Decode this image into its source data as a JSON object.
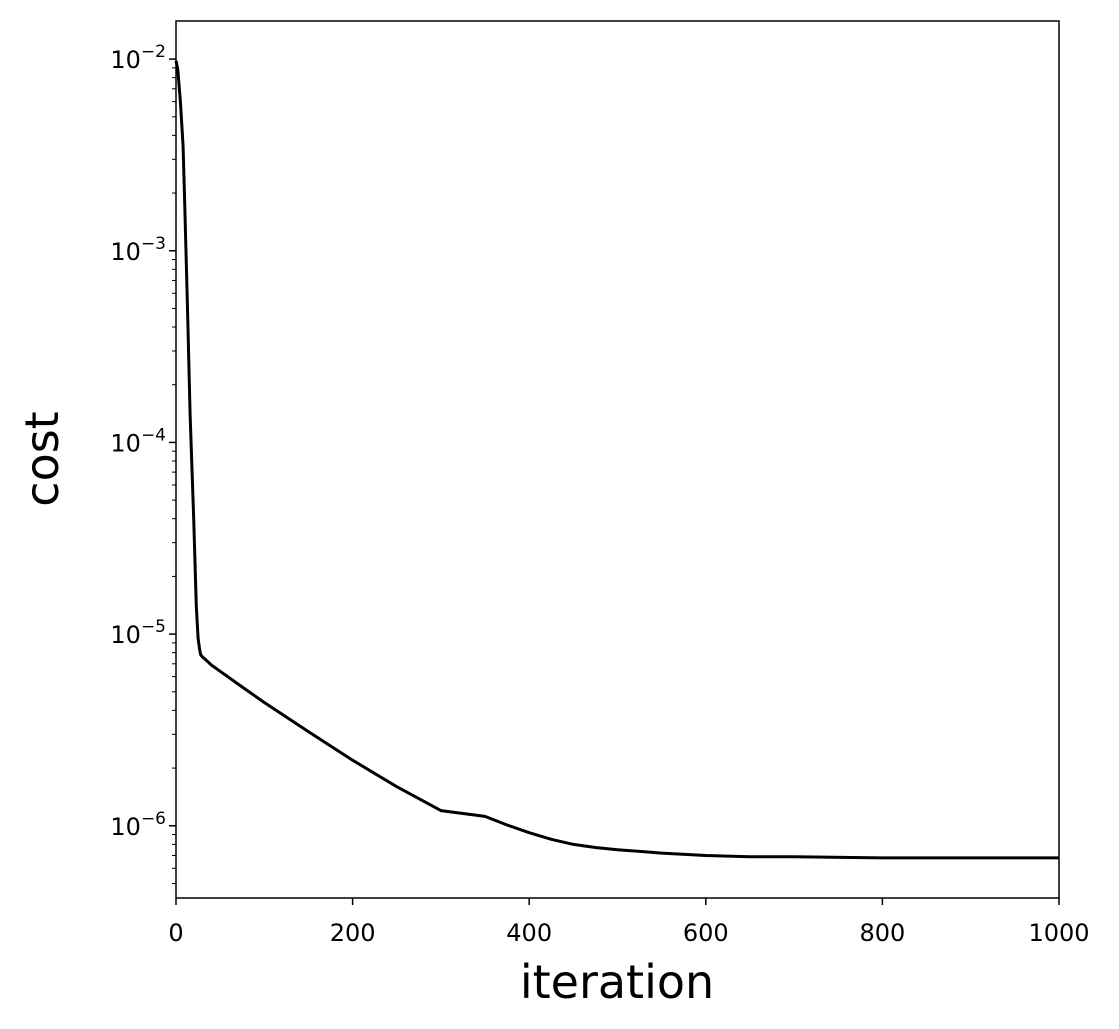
{
  "chart_data": {
    "type": "line",
    "title": "",
    "xlabel": "iteration",
    "ylabel": "cost",
    "yscale": "log",
    "xlim": [
      0,
      1000
    ],
    "ylim": [
      4.2e-07,
      0.0158
    ],
    "grid": false,
    "line_color": "#000000",
    "x_ticks": [
      0,
      200,
      400,
      600,
      800,
      1000
    ],
    "x_tick_labels": [
      "0",
      "200",
      "400",
      "600",
      "800",
      "1000"
    ],
    "y_ticks": [
      {
        "value": 0.01,
        "base": "10",
        "exp": "−2"
      },
      {
        "value": 0.001,
        "base": "10",
        "exp": "−3"
      },
      {
        "value": 0.0001,
        "base": "10",
        "exp": "−4"
      },
      {
        "value": 1e-05,
        "base": "10",
        "exp": "−5"
      },
      {
        "value": 1e-06,
        "base": "10",
        "exp": "−6"
      }
    ],
    "series": [
      {
        "x": [
          0,
          2,
          5,
          8,
          10,
          13,
          16,
          20,
          23,
          25,
          27,
          28,
          30,
          33,
          40,
          50,
          75,
          100,
          150,
          200,
          250,
          300,
          350,
          375,
          400,
          425,
          450,
          475,
          500,
          550,
          600,
          650,
          700,
          800,
          900,
          1000
        ],
        "y": [
          0.0098,
          0.0088,
          0.006,
          0.0035,
          0.0017,
          0.0005,
          0.00014,
          4e-05,
          1.4e-05,
          9.5e-06,
          8.2e-06,
          7.8e-06,
          7.6e-06,
          7.4e-06,
          6.9e-06,
          6.4e-06,
          5.3e-06,
          4.4e-06,
          3.1e-06,
          2.2e-06,
          1.6e-06,
          1.2e-06,
          1.12e-06,
          1.01e-06,
          9.2e-07,
          8.5e-07,
          8e-07,
          7.7e-07,
          7.5e-07,
          7.2e-07,
          7e-07,
          6.9e-07,
          6.9e-07,
          6.8e-07,
          6.8e-07,
          6.8e-07
        ]
      }
    ]
  }
}
